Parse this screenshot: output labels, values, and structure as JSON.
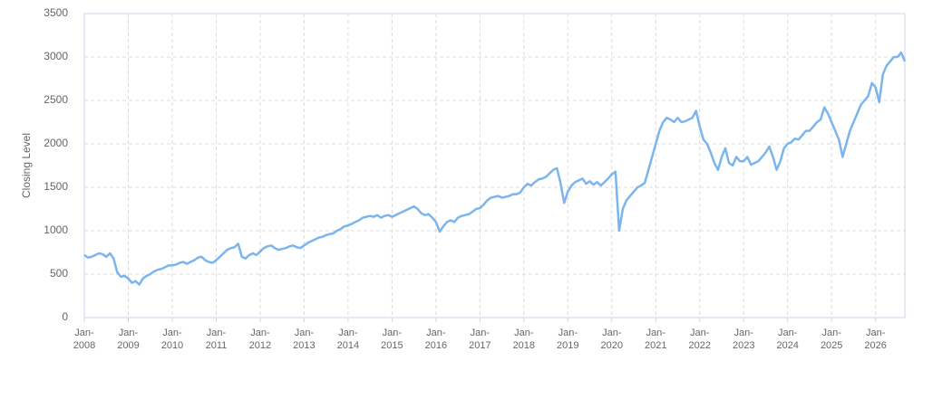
{
  "chart_data": {
    "type": "line",
    "y_label": "Closing Level",
    "x": [
      "2008-01",
      "2008-02",
      "2008-03",
      "2008-04",
      "2008-05",
      "2008-06",
      "2008-07",
      "2008-08",
      "2008-09",
      "2008-10",
      "2008-11",
      "2008-12",
      "2009-01",
      "2009-02",
      "2009-03",
      "2009-04",
      "2009-05",
      "2009-06",
      "2009-07",
      "2009-08",
      "2009-09",
      "2009-10",
      "2009-11",
      "2009-12",
      "2010-01",
      "2010-02",
      "2010-03",
      "2010-04",
      "2010-05",
      "2010-06",
      "2010-07",
      "2010-08",
      "2010-09",
      "2010-10",
      "2010-11",
      "2010-12",
      "2011-01",
      "2011-02",
      "2011-03",
      "2011-04",
      "2011-05",
      "2011-06",
      "2011-07",
      "2011-08",
      "2011-09",
      "2011-10",
      "2011-11",
      "2011-12",
      "2012-01",
      "2012-02",
      "2012-03",
      "2012-04",
      "2012-05",
      "2012-06",
      "2012-07",
      "2012-08",
      "2012-09",
      "2012-10",
      "2012-11",
      "2012-12",
      "2013-01",
      "2013-02",
      "2013-03",
      "2013-04",
      "2013-05",
      "2013-06",
      "2013-07",
      "2013-08",
      "2013-09",
      "2013-10",
      "2013-11",
      "2013-12",
      "2014-01",
      "2014-02",
      "2014-03",
      "2014-04",
      "2014-05",
      "2014-06",
      "2014-07",
      "2014-08",
      "2014-09",
      "2014-10",
      "2014-11",
      "2014-12",
      "2015-01",
      "2015-02",
      "2015-03",
      "2015-04",
      "2015-05",
      "2015-06",
      "2015-07",
      "2015-08",
      "2015-09",
      "2015-10",
      "2015-11",
      "2015-12",
      "2016-01",
      "2016-02",
      "2016-03",
      "2016-04",
      "2016-05",
      "2016-06",
      "2016-07",
      "2016-08",
      "2016-09",
      "2016-10",
      "2016-11",
      "2016-12",
      "2017-01",
      "2017-02",
      "2017-03",
      "2017-04",
      "2017-05",
      "2017-06",
      "2017-07",
      "2017-08",
      "2017-09",
      "2017-10",
      "2017-11",
      "2017-12",
      "2018-01",
      "2018-02",
      "2018-03",
      "2018-04",
      "2018-05",
      "2018-06",
      "2018-07",
      "2018-08",
      "2018-09",
      "2018-10",
      "2018-11",
      "2018-12",
      "2019-01",
      "2019-02",
      "2019-03",
      "2019-04",
      "2019-05",
      "2019-06",
      "2019-07",
      "2019-08",
      "2019-09",
      "2019-10",
      "2019-11",
      "2019-12",
      "2020-01",
      "2020-02",
      "2020-03",
      "2020-04",
      "2020-05",
      "2020-06",
      "2020-07",
      "2020-08",
      "2020-09",
      "2020-10",
      "2020-11",
      "2020-12",
      "2021-01",
      "2021-02",
      "2021-03",
      "2021-04",
      "2021-05",
      "2021-06",
      "2021-07",
      "2021-08",
      "2021-09",
      "2021-10",
      "2021-11",
      "2021-12",
      "2022-01",
      "2022-02",
      "2022-03",
      "2022-04",
      "2022-05",
      "2022-06",
      "2022-07",
      "2022-08",
      "2022-09",
      "2022-10",
      "2022-11",
      "2022-12",
      "2023-01",
      "2023-02",
      "2023-03",
      "2023-04",
      "2023-05",
      "2023-06",
      "2023-07",
      "2023-08",
      "2023-09",
      "2023-10",
      "2023-11",
      "2023-12",
      "2024-01",
      "2024-02",
      "2024-03",
      "2024-04",
      "2024-05",
      "2024-06",
      "2024-07",
      "2024-08",
      "2024-09",
      "2024-10",
      "2024-11",
      "2024-12",
      "2025-01",
      "2025-02",
      "2025-03",
      "2025-04",
      "2025-05",
      "2025-06",
      "2025-07",
      "2025-08",
      "2025-09",
      "2025-10",
      "2025-11",
      "2025-12",
      "2026-01",
      "2026-02",
      "2026-03",
      "2026-04",
      "2026-05",
      "2026-06",
      "2026-07",
      "2026-08",
      "2026-09"
    ],
    "series": [
      {
        "color": "#7cb5ec",
        "values": [
          720,
          690,
          700,
          720,
          740,
          730,
          700,
          740,
          680,
          520,
          470,
          480,
          450,
          400,
          420,
          380,
          450,
          480,
          500,
          530,
          550,
          560,
          580,
          600,
          600,
          610,
          630,
          640,
          620,
          640,
          660,
          690,
          700,
          660,
          640,
          630,
          660,
          700,
          740,
          780,
          800,
          810,
          850,
          700,
          680,
          720,
          740,
          720,
          760,
          800,
          820,
          830,
          800,
          780,
          790,
          800,
          820,
          830,
          810,
          800,
          830,
          860,
          880,
          900,
          920,
          930,
          950,
          960,
          970,
          1000,
          1020,
          1050,
          1060,
          1080,
          1100,
          1120,
          1150,
          1160,
          1170,
          1160,
          1180,
          1150,
          1170,
          1180,
          1160,
          1180,
          1200,
          1220,
          1240,
          1260,
          1280,
          1250,
          1200,
          1180,
          1190,
          1150,
          1100,
          990,
          1050,
          1100,
          1120,
          1100,
          1150,
          1170,
          1180,
          1190,
          1220,
          1250,
          1260,
          1300,
          1350,
          1380,
          1390,
          1400,
          1380,
          1390,
          1400,
          1420,
          1420,
          1440,
          1500,
          1540,
          1520,
          1560,
          1590,
          1600,
          1620,
          1660,
          1700,
          1720,
          1550,
          1320,
          1450,
          1520,
          1560,
          1580,
          1600,
          1540,
          1570,
          1530,
          1560,
          1520,
          1560,
          1600,
          1650,
          1680,
          1000,
          1250,
          1350,
          1400,
          1450,
          1500,
          1520,
          1550,
          1700,
          1850,
          2000,
          2150,
          2250,
          2300,
          2280,
          2250,
          2300,
          2250,
          2260,
          2280,
          2300,
          2380,
          2200,
          2050,
          2000,
          1900,
          1780,
          1700,
          1850,
          1950,
          1780,
          1750,
          1850,
          1800,
          1800,
          1850,
          1760,
          1780,
          1800,
          1850,
          1900,
          1970,
          1850,
          1700,
          1800,
          1950,
          2000,
          2020,
          2060,
          2050,
          2100,
          2150,
          2150,
          2200,
          2250,
          2280,
          2420,
          2350,
          2250,
          2150,
          2050,
          1850,
          2000,
          2150,
          2250,
          2350,
          2450,
          2500,
          2550,
          2700,
          2650,
          2480,
          2800,
          2900,
          2950,
          3000,
          3000,
          3050,
          2950
        ]
      }
    ],
    "xlim": [
      "2008-01",
      "2026-09"
    ],
    "xticks": [
      {
        "value": "2008-01",
        "label": "Jan-2008"
      },
      {
        "value": "2009-01",
        "label": "Jan-2009"
      },
      {
        "value": "2010-01",
        "label": "Jan-2010"
      },
      {
        "value": "2011-01",
        "label": "Jan-2011"
      },
      {
        "value": "2012-01",
        "label": "Jan-2012"
      },
      {
        "value": "2013-01",
        "label": "Jan-2013"
      },
      {
        "value": "2014-01",
        "label": "Jan-2014"
      },
      {
        "value": "2015-01",
        "label": "Jan-2015"
      },
      {
        "value": "2016-01",
        "label": "Jan-2016"
      },
      {
        "value": "2017-01",
        "label": "Jan-2017"
      },
      {
        "value": "2018-01",
        "label": "Jan-2018"
      },
      {
        "value": "2019-01",
        "label": "Jan-2019"
      },
      {
        "value": "2020-01",
        "label": "Jan-2020"
      },
      {
        "value": "2021-01",
        "label": "Jan-2021"
      },
      {
        "value": "2022-01",
        "label": "Jan-2022"
      },
      {
        "value": "2023-01",
        "label": "Jan-2023"
      },
      {
        "value": "2024-01",
        "label": "Jan-2024"
      },
      {
        "value": "2025-01",
        "label": "Jan-2025"
      },
      {
        "value": "2026-01",
        "label": "Jan-2026"
      }
    ],
    "ylim": [
      0,
      3500
    ],
    "yticks": [
      0,
      500,
      1000,
      1500,
      2000,
      2500,
      3000,
      3500
    ],
    "grid": true
  }
}
